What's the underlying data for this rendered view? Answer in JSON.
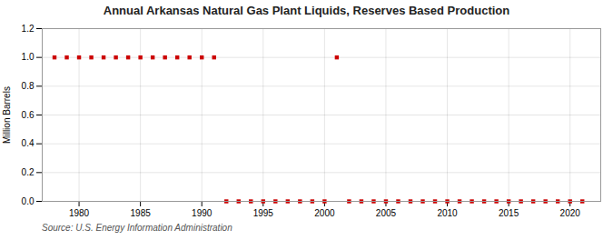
{
  "chart_data": {
    "type": "scatter",
    "title": "Annual Arkansas Natural Gas Plant Liquids, Reserves Based Production",
    "ylabel": "Million Barrels",
    "annotation": "Source: U.S. Energy Information Administration",
    "color": "#CC0000",
    "marker": "square",
    "grid": true,
    "xlim": [
      1977,
      2022.5
    ],
    "ylim": [
      0,
      1.2
    ],
    "xticks": [
      1980,
      1985,
      1990,
      1995,
      2000,
      2005,
      2010,
      2015,
      2020
    ],
    "yticks": [
      {
        "value": 0.0,
        "label": "0.0"
      },
      0.2,
      0.4,
      0.6,
      0.8,
      {
        "value": 1.0,
        "label": "1.0"
      },
      1.2
    ],
    "x": [
      1978,
      1979,
      1980,
      1981,
      1982,
      1983,
      1984,
      1985,
      1986,
      1987,
      1988,
      1989,
      1990,
      1991,
      1992,
      1993,
      1994,
      1995,
      1996,
      1997,
      1998,
      1999,
      2000,
      2001,
      2002,
      2003,
      2004,
      2005,
      2006,
      2007,
      2008,
      2009,
      2010,
      2011,
      2012,
      2013,
      2014,
      2015,
      2016,
      2017,
      2018,
      2019,
      2020,
      2021
    ],
    "values": [
      1.0,
      1.0,
      1.0,
      1.0,
      1.0,
      1.0,
      1.0,
      1.0,
      1.0,
      1.0,
      1.0,
      1.0,
      1.0,
      1.0,
      0.0,
      0.0,
      0.0,
      0.0,
      0.0,
      0.0,
      0.0,
      0.0,
      0.0,
      1.0,
      0.0,
      0.0,
      0.0,
      0.0,
      0.0,
      0.0,
      0.0,
      0.0,
      0.0,
      0.0,
      0.0,
      0.0,
      0.0,
      0.0,
      0.0,
      0.0,
      0.0,
      0.0,
      0.0,
      0.0
    ]
  }
}
